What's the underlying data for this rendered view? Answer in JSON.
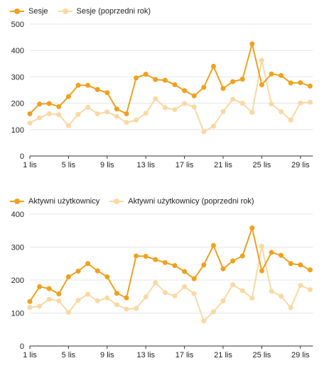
{
  "colors": {
    "current": "#f0a01e",
    "previous": "#fad8a4",
    "grid": "#e4e4e4",
    "axis": "#333333",
    "text": "#222222"
  },
  "chart_data": [
    {
      "type": "line",
      "title": "",
      "xlabel": "",
      "ylabel": "",
      "ylim": [
        0,
        500
      ],
      "yticks": [
        "0",
        "100",
        "200",
        "300",
        "400",
        "500"
      ],
      "xticks": [
        "1 lis",
        "5 lis",
        "9 lis",
        "13 lis",
        "17 lis",
        "21 lis",
        "25 lis",
        "29 lis"
      ],
      "legend": "top-left",
      "grid": true,
      "series": [
        {
          "name": "Sesje",
          "values": [
            160,
            197,
            199,
            187,
            225,
            268,
            268,
            252,
            240,
            178,
            160,
            296,
            310,
            290,
            287,
            270,
            248,
            228,
            260,
            340,
            256,
            282,
            291,
            425,
            270,
            311,
            305,
            277,
            278,
            265
          ]
        },
        {
          "name": "Sesje (poprzedni rok)",
          "values": [
            125,
            145,
            160,
            157,
            115,
            158,
            185,
            160,
            167,
            150,
            127,
            136,
            162,
            217,
            183,
            176,
            199,
            186,
            92,
            113,
            168,
            215,
            200,
            165,
            363,
            197,
            168,
            136,
            201,
            204
          ]
        }
      ]
    },
    {
      "type": "line",
      "title": "",
      "xlabel": "",
      "ylabel": "",
      "ylim": [
        0,
        400
      ],
      "yticks": [
        "0",
        "100",
        "200",
        "300",
        "400"
      ],
      "xticks": [
        "1 lis",
        "5 lis",
        "9 lis",
        "13 lis",
        "17 lis",
        "21 lis",
        "25 lis",
        "29 lis"
      ],
      "legend": "top-left",
      "grid": true,
      "series": [
        {
          "name": "Aktywni użytkownicy",
          "values": [
            135,
            180,
            174,
            158,
            210,
            227,
            250,
            228,
            210,
            160,
            146,
            273,
            272,
            262,
            253,
            244,
            226,
            204,
            246,
            305,
            234,
            258,
            273,
            358,
            228,
            284,
            275,
            250,
            246,
            231
          ]
        },
        {
          "name": "Aktywni użytkownicy (poprzedni rok)",
          "values": [
            117,
            121,
            142,
            137,
            102,
            139,
            157,
            137,
            146,
            125,
            112,
            114,
            149,
            192,
            162,
            152,
            180,
            159,
            76,
            104,
            137,
            186,
            168,
            145,
            303,
            166,
            151,
            116,
            184,
            171
          ]
        }
      ]
    }
  ]
}
